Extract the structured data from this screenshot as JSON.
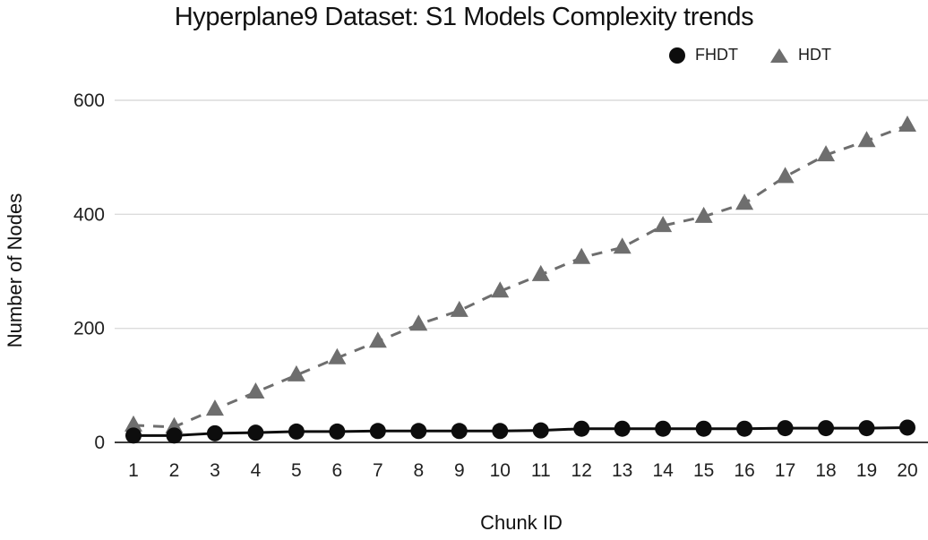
{
  "chart_data": {
    "type": "line",
    "title": "Hyperplane9 Dataset: S1 Models Complexity trends",
    "xlabel": "Chunk ID",
    "ylabel": "Number of Nodes",
    "x": [
      1,
      2,
      3,
      4,
      5,
      6,
      7,
      8,
      9,
      10,
      11,
      12,
      13,
      14,
      15,
      16,
      17,
      18,
      19,
      20
    ],
    "yticks": [
      0,
      200,
      400,
      600
    ],
    "ylim": [
      0,
      600
    ],
    "grid": true,
    "legend_position": "top-right",
    "background": "#ffffff",
    "gridline_color": "#dcdcdc",
    "axis_line_color": "#3d3d3d",
    "series": [
      {
        "name": "FHDT",
        "color": "#0d0d0d",
        "marker": "circle",
        "line_style": "solid",
        "values": [
          12,
          12,
          16,
          17,
          19,
          19,
          20,
          20,
          20,
          20,
          21,
          24,
          24,
          24,
          24,
          24,
          25,
          25,
          25,
          26
        ]
      },
      {
        "name": "HDT",
        "color": "#6e6e6e",
        "marker": "triangle",
        "line_style": "dashed",
        "values": [
          30,
          27,
          58,
          88,
          118,
          148,
          177,
          207,
          231,
          265,
          294,
          324,
          342,
          380,
          396,
          419,
          466,
          504,
          529,
          556
        ]
      }
    ]
  }
}
